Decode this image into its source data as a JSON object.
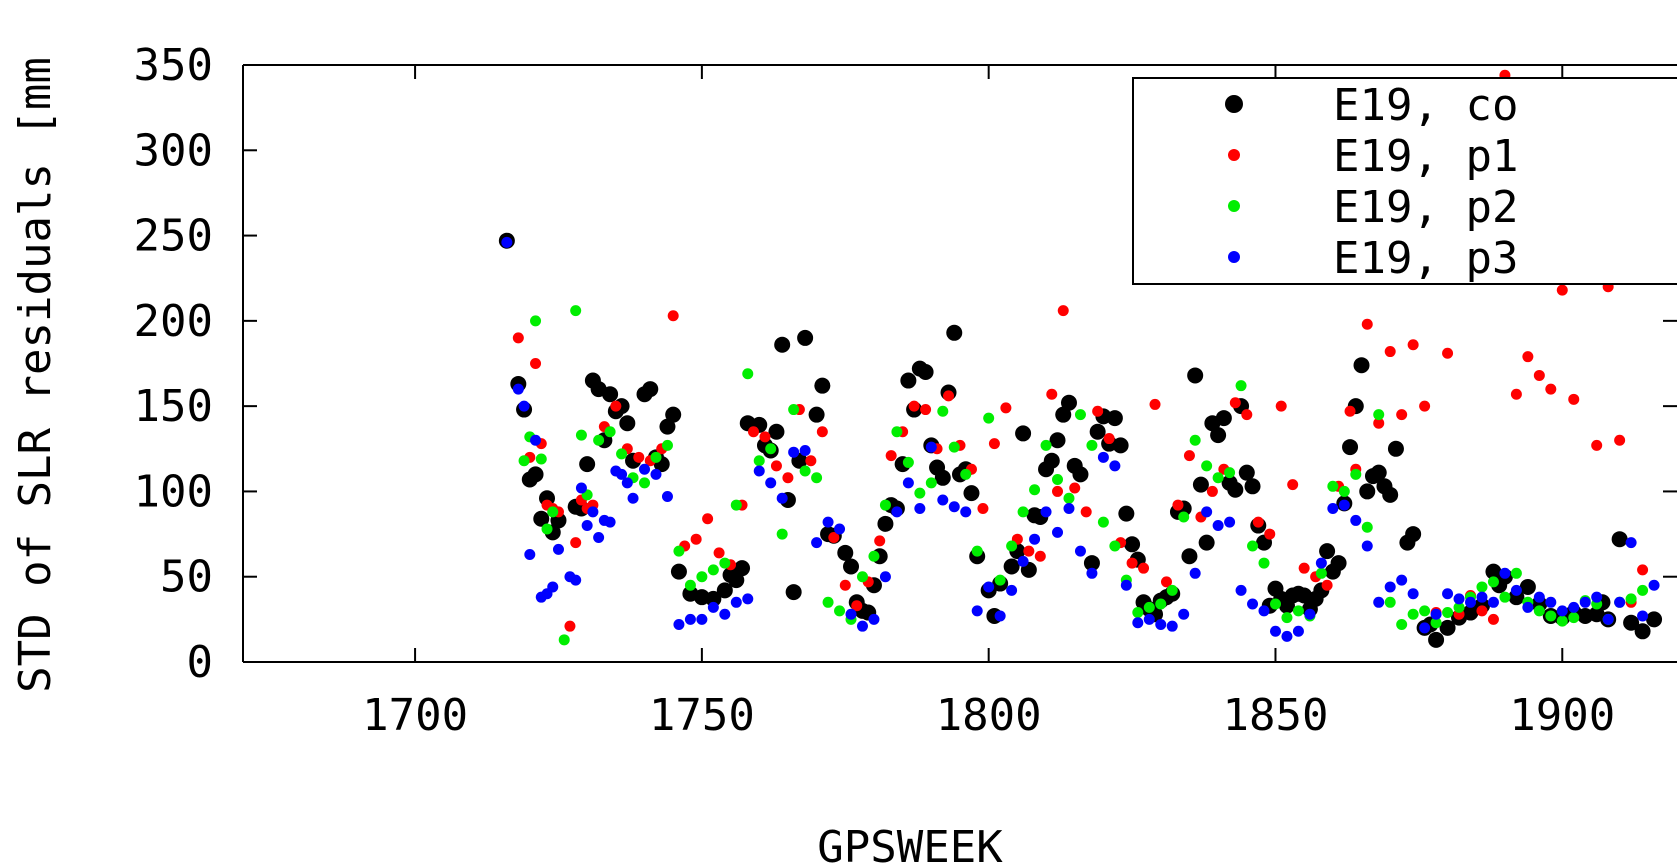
{
  "chart_data": {
    "type": "scatter",
    "title": "",
    "xlabel": "GPSWEEK",
    "ylabel": "STD of SLR residuals [mm",
    "xlim": [
      1670,
      1920
    ],
    "ylim": [
      0,
      350
    ],
    "x_ticks": [
      "1700",
      "1750",
      "1800",
      "1850",
      "1900"
    ],
    "y_ticks": [
      "0",
      "50",
      "100",
      "150",
      "200",
      "250",
      "300",
      "350"
    ],
    "grid": false,
    "legend_position": "top-right",
    "series": [
      {
        "name": "E19, co",
        "color": "#000000",
        "marker": "large-dot",
        "x": [
          1716,
          1718,
          1719,
          1720,
          1721,
          1722,
          1723,
          1724,
          1725,
          1728,
          1729,
          1730,
          1731,
          1732,
          1733,
          1734,
          1735,
          1736,
          1737,
          1738,
          1740,
          1741,
          1742,
          1743,
          1744,
          1745,
          1746,
          1748,
          1750,
          1752,
          1754,
          1755,
          1756,
          1757,
          1758,
          1760,
          1761,
          1762,
          1763,
          1764,
          1765,
          1766,
          1767,
          1768,
          1770,
          1771,
          1772,
          1773,
          1775,
          1776,
          1777,
          1778,
          1779,
          1780,
          1781,
          1782,
          1783,
          1784,
          1785,
          1786,
          1787,
          1788,
          1789,
          1790,
          1791,
          1792,
          1793,
          1794,
          1795,
          1796,
          1797,
          1798,
          1800,
          1801,
          1802,
          1804,
          1805,
          1806,
          1807,
          1808,
          1809,
          1810,
          1811,
          1812,
          1813,
          1814,
          1815,
          1816,
          1818,
          1819,
          1820,
          1821,
          1822,
          1823,
          1824,
          1825,
          1826,
          1827,
          1828,
          1829,
          1830,
          1831,
          1832,
          1833,
          1834,
          1835,
          1836,
          1837,
          1838,
          1839,
          1840,
          1841,
          1842,
          1843,
          1844,
          1845,
          1846,
          1847,
          1848,
          1849,
          1850,
          1851,
          1852,
          1853,
          1854,
          1855,
          1856,
          1857,
          1858,
          1859,
          1860,
          1861,
          1862,
          1863,
          1864,
          1865,
          1866,
          1867,
          1868,
          1869,
          1870,
          1871,
          1873,
          1874,
          1876,
          1877,
          1878,
          1880,
          1882,
          1884,
          1886,
          1888,
          1889,
          1890,
          1892,
          1894,
          1896,
          1898,
          1900,
          1902,
          1904,
          1906,
          1907,
          1908,
          1910,
          1912,
          1914,
          1916
        ],
        "y": [
          247,
          163,
          148,
          107,
          110,
          84,
          96,
          76,
          83,
          91,
          90,
          116,
          165,
          160,
          130,
          157,
          147,
          150,
          140,
          118,
          157,
          160,
          120,
          116,
          138,
          145,
          53,
          40,
          38,
          37,
          42,
          51,
          48,
          55,
          140,
          139,
          127,
          124,
          135,
          186,
          95,
          41,
          118,
          190,
          145,
          162,
          75,
          74,
          64,
          56,
          35,
          30,
          29,
          45,
          62,
          81,
          92,
          90,
          116,
          165,
          148,
          172,
          170,
          127,
          114,
          108,
          158,
          193,
          110,
          113,
          99,
          62,
          42,
          27,
          46,
          56,
          65,
          134,
          54,
          86,
          85,
          113,
          118,
          130,
          145,
          152,
          115,
          110,
          58,
          135,
          144,
          128,
          143,
          127,
          87,
          69,
          60,
          35,
          31,
          28,
          36,
          38,
          40,
          88,
          90,
          62,
          168,
          104,
          70,
          140,
          133,
          143,
          105,
          101,
          150,
          111,
          103,
          80,
          70,
          33,
          43,
          37,
          33,
          39,
          40,
          39,
          31,
          37,
          42,
          65,
          53,
          58,
          93,
          126,
          150,
          174,
          100,
          109,
          111,
          103,
          98,
          125,
          70,
          75,
          20,
          22,
          13,
          20,
          26,
          29,
          33,
          53,
          45,
          50,
          38,
          44,
          34,
          27,
          26,
          29,
          27,
          28,
          35,
          25,
          72,
          23,
          18,
          25
        ]
      },
      {
        "name": "E19, p1",
        "color": "#ff0000",
        "marker": "dot",
        "x": [
          1718,
          1720,
          1721,
          1722,
          1723,
          1724,
          1725,
          1727,
          1728,
          1729,
          1730,
          1731,
          1733,
          1735,
          1737,
          1739,
          1741,
          1743,
          1745,
          1747,
          1749,
          1751,
          1753,
          1755,
          1757,
          1759,
          1761,
          1763,
          1765,
          1767,
          1769,
          1771,
          1773,
          1775,
          1777,
          1779,
          1781,
          1783,
          1785,
          1787,
          1789,
          1791,
          1793,
          1795,
          1797,
          1799,
          1801,
          1803,
          1805,
          1807,
          1809,
          1811,
          1812,
          1813,
          1815,
          1817,
          1819,
          1821,
          1823,
          1825,
          1827,
          1829,
          1831,
          1833,
          1835,
          1837,
          1839,
          1841,
          1843,
          1845,
          1847,
          1849,
          1851,
          1853,
          1855,
          1857,
          1859,
          1861,
          1863,
          1864,
          1866,
          1868,
          1870,
          1872,
          1874,
          1876,
          1878,
          1880,
          1882,
          1884,
          1886,
          1888,
          1890,
          1892,
          1894,
          1896,
          1898,
          1900,
          1902,
          1904,
          1906,
          1908,
          1910,
          1912,
          1914
        ],
        "y": [
          190,
          120,
          175,
          128,
          92,
          90,
          88,
          21,
          70,
          95,
          90,
          92,
          138,
          150,
          125,
          120,
          118,
          125,
          203,
          68,
          72,
          84,
          64,
          57,
          92,
          135,
          132,
          115,
          108,
          148,
          118,
          135,
          73,
          45,
          33,
          47,
          71,
          121,
          135,
          150,
          148,
          125,
          156,
          127,
          113,
          90,
          128,
          149,
          72,
          65,
          62,
          157,
          100,
          206,
          102,
          88,
          147,
          131,
          70,
          58,
          55,
          151,
          47,
          92,
          121,
          85,
          100,
          113,
          152,
          145,
          82,
          75,
          150,
          104,
          55,
          50,
          45,
          103,
          147,
          113,
          198,
          140,
          182,
          145,
          186,
          150,
          29,
          181,
          28,
          39,
          30,
          25,
          344,
          157,
          179,
          168,
          160,
          218,
          154,
          232,
          127,
          220,
          130,
          35,
          54
        ]
      },
      {
        "name": "E19, p2",
        "color": "#00ee00",
        "marker": "dot",
        "x": [
          1719,
          1720,
          1721,
          1722,
          1723,
          1724,
          1726,
          1728,
          1729,
          1730,
          1732,
          1734,
          1736,
          1738,
          1740,
          1742,
          1744,
          1746,
          1748,
          1750,
          1752,
          1754,
          1756,
          1758,
          1760,
          1762,
          1764,
          1766,
          1768,
          1770,
          1772,
          1774,
          1776,
          1778,
          1780,
          1782,
          1784,
          1786,
          1788,
          1790,
          1792,
          1794,
          1796,
          1798,
          1800,
          1802,
          1804,
          1806,
          1808,
          1810,
          1812,
          1814,
          1816,
          1818,
          1820,
          1822,
          1824,
          1826,
          1828,
          1830,
          1832,
          1834,
          1836,
          1838,
          1840,
          1842,
          1844,
          1846,
          1848,
          1850,
          1852,
          1854,
          1856,
          1858,
          1860,
          1862,
          1864,
          1866,
          1868,
          1870,
          1872,
          1874,
          1876,
          1878,
          1880,
          1882,
          1884,
          1886,
          1888,
          1890,
          1892,
          1894,
          1896,
          1898,
          1900,
          1902,
          1904,
          1906,
          1908,
          1910,
          1912,
          1914
        ],
        "y": [
          118,
          132,
          200,
          119,
          78,
          88,
          13,
          206,
          133,
          98,
          130,
          135,
          122,
          108,
          105,
          120,
          127,
          65,
          45,
          50,
          54,
          58,
          92,
          169,
          118,
          125,
          75,
          148,
          112,
          108,
          35,
          30,
          25,
          50,
          62,
          92,
          135,
          117,
          99,
          105,
          147,
          126,
          110,
          65,
          143,
          48,
          68,
          88,
          101,
          127,
          107,
          96,
          145,
          127,
          82,
          68,
          48,
          29,
          32,
          34,
          42,
          85,
          130,
          115,
          108,
          111,
          162,
          68,
          58,
          34,
          26,
          30,
          27,
          52,
          103,
          100,
          110,
          79,
          145,
          35,
          22,
          28,
          30,
          23,
          29,
          32,
          38,
          44,
          47,
          38,
          52,
          35,
          30,
          27,
          24,
          26,
          36,
          34,
          25,
          35,
          37,
          42
        ]
      },
      {
        "name": "E19, p3",
        "color": "#0000ff",
        "marker": "dot",
        "x": [
          1716,
          1718,
          1719,
          1720,
          1721,
          1722,
          1723,
          1724,
          1725,
          1727,
          1728,
          1729,
          1730,
          1731,
          1732,
          1733,
          1734,
          1735,
          1736,
          1737,
          1738,
          1740,
          1742,
          1744,
          1746,
          1748,
          1750,
          1752,
          1754,
          1756,
          1758,
          1760,
          1762,
          1764,
          1766,
          1768,
          1770,
          1772,
          1774,
          1776,
          1778,
          1780,
          1782,
          1784,
          1786,
          1788,
          1790,
          1792,
          1794,
          1796,
          1798,
          1800,
          1802,
          1804,
          1806,
          1808,
          1810,
          1812,
          1814,
          1816,
          1818,
          1820,
          1822,
          1824,
          1826,
          1828,
          1830,
          1832,
          1834,
          1836,
          1838,
          1840,
          1842,
          1844,
          1846,
          1848,
          1850,
          1852,
          1854,
          1856,
          1858,
          1860,
          1862,
          1864,
          1866,
          1868,
          1870,
          1872,
          1874,
          1876,
          1878,
          1880,
          1882,
          1884,
          1886,
          1888,
          1890,
          1892,
          1894,
          1896,
          1898,
          1900,
          1902,
          1904,
          1906,
          1908,
          1910,
          1912,
          1914,
          1916
        ],
        "y": [
          246,
          160,
          150,
          63,
          130,
          38,
          40,
          44,
          66,
          50,
          48,
          102,
          80,
          88,
          73,
          83,
          82,
          112,
          110,
          105,
          96,
          113,
          110,
          97,
          22,
          25,
          25,
          32,
          28,
          35,
          37,
          112,
          105,
          96,
          123,
          124,
          70,
          82,
          78,
          28,
          21,
          25,
          50,
          88,
          105,
          90,
          126,
          95,
          91,
          88,
          30,
          44,
          27,
          42,
          59,
          72,
          88,
          76,
          90,
          65,
          52,
          120,
          115,
          45,
          23,
          25,
          22,
          21,
          28,
          52,
          88,
          80,
          82,
          42,
          34,
          30,
          18,
          15,
          18,
          28,
          58,
          90,
          92,
          83,
          68,
          35,
          44,
          48,
          40,
          20,
          28,
          40,
          37,
          35,
          38,
          35,
          52,
          42,
          32,
          38,
          35,
          30,
          32,
          35,
          38,
          25,
          35,
          70,
          27,
          45
        ]
      }
    ]
  }
}
